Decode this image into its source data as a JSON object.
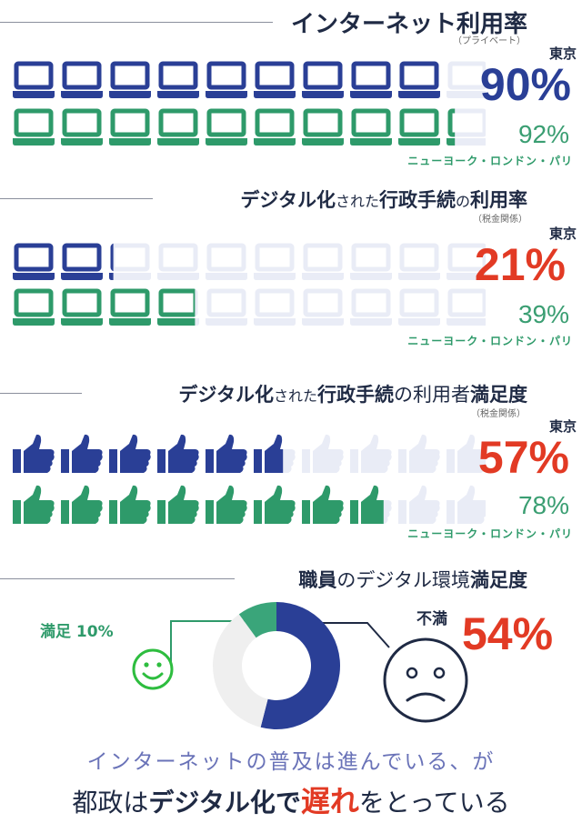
{
  "sections": [
    {
      "title_bold": "インターネット利用率",
      "note": "（プライベート）",
      "tokyo_label": "東京",
      "tokyo_pct": "90%",
      "tokyo_color": "#2a3f96",
      "other_pct": "92%",
      "other_label": "ニューヨーク・ロンドン・パリ",
      "icon": "laptop-icon"
    },
    {
      "title_part1": "デジタル化",
      "title_part2": "された",
      "title_part3": "行政手続",
      "title_part4": "の",
      "title_part5": "利用率",
      "note": "（税金関係）",
      "tokyo_label": "東京",
      "tokyo_pct": "21%",
      "tokyo_color": "#e23a24",
      "other_pct": "39%",
      "other_label": "ニューヨーク・ロンドン・パリ",
      "icon": "laptop-icon"
    },
    {
      "title_part1": "デジタル化",
      "title_part2": "された",
      "title_part3": "行政手続",
      "title_part4": "の利用者",
      "title_part5": "満足度",
      "note": "（税金関係）",
      "tokyo_label": "東京",
      "tokyo_pct": "57%",
      "tokyo_color": "#e23a24",
      "other_pct": "78%",
      "other_label": "ニューヨーク・ロンドン・パリ",
      "icon": "thumbs-up-icon"
    },
    {
      "title_part1": "職員",
      "title_part2": "のデジタル環境",
      "title_part3": "満足度",
      "satisfied_label": "満足",
      "satisfied_pct": "10%",
      "unsatisfied_label": "不満",
      "unsatisfied_pct": "54%",
      "icon_happy": "smiley-face-icon",
      "icon_sad": "sad-face-icon"
    }
  ],
  "footer": {
    "line1": "インターネットの普及は進んでいる、が",
    "line2_a": "都政は",
    "line2_b": "デジタル化で",
    "line2_c": "遅れ",
    "line2_d": "をとっている"
  },
  "colors": {
    "tokyo_blue": "#2a3f96",
    "other_green": "#2e9a6a",
    "highlight_red": "#e23a24",
    "faded": "#e9ecf6",
    "donut_gray": "#efefef"
  },
  "chart_data": [
    {
      "type": "bar",
      "title": "インターネット利用率",
      "categories": [
        "東京",
        "ニューヨーク・ロンドン・パリ"
      ],
      "values": [
        90,
        92
      ],
      "unit": "%",
      "ylim": [
        0,
        100
      ]
    },
    {
      "type": "bar",
      "title": "デジタル化された行政手続の利用率",
      "categories": [
        "東京",
        "ニューヨーク・ロンドン・パリ"
      ],
      "values": [
        21,
        39
      ],
      "unit": "%",
      "ylim": [
        0,
        100
      ]
    },
    {
      "type": "bar",
      "title": "デジタル化された行政手続の利用者満足度",
      "categories": [
        "東京",
        "ニューヨーク・ロンドン・パリ"
      ],
      "values": [
        57,
        78
      ],
      "unit": "%",
      "ylim": [
        0,
        100
      ]
    },
    {
      "type": "pie",
      "title": "職員のデジタル環境満足度",
      "categories": [
        "満足",
        "不満"
      ],
      "values": [
        10,
        54
      ],
      "unit": "%"
    }
  ]
}
